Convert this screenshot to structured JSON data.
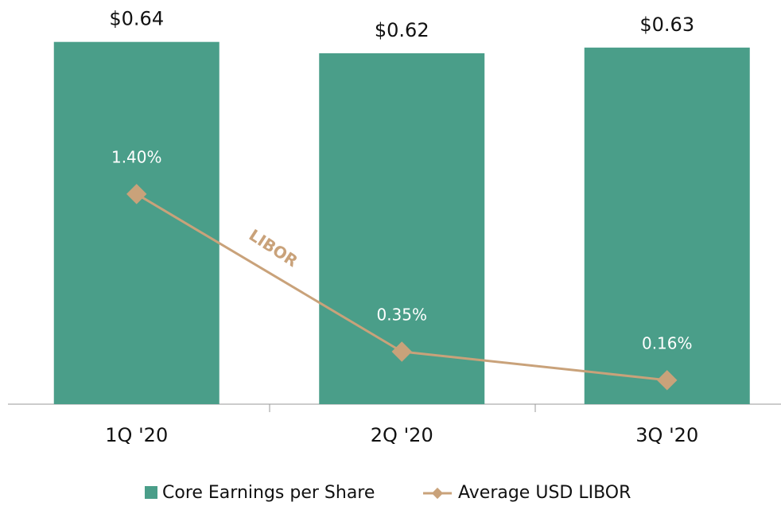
{
  "chart_data": {
    "type": "bar_line",
    "categories": [
      "1Q '20",
      "2Q '20",
      "3Q '20"
    ],
    "series": [
      {
        "name": "Core Earnings per Share",
        "type": "bar",
        "color": "#4a9e89",
        "values": [
          0.64,
          0.62,
          0.63
        ],
        "value_labels": [
          "$0.64",
          "$0.62",
          "$0.63"
        ]
      },
      {
        "name": "Average USD LIBOR",
        "type": "line",
        "axis": "y2",
        "color": "#c9a27a",
        "values": [
          1.4,
          0.35,
          0.16
        ],
        "value_labels": [
          "1.40%",
          "0.35%",
          "0.16%"
        ]
      }
    ],
    "annotation": "LIBOR",
    "ylim": [
      0,
      0.7
    ],
    "y2lim": [
      0,
      2.64
    ],
    "legend": "bottom"
  }
}
